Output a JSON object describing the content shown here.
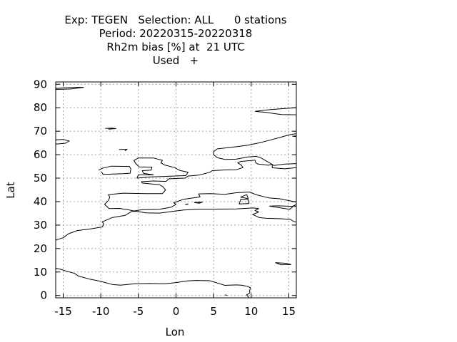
{
  "chart_data": {
    "type": "scatter",
    "title_lines": [
      "Exp: TEGEN   Selection: ALL      0 stations",
      "Period: 20220315-20220318",
      "Rh2m bias [%] at  21 UTC",
      "Used   +"
    ],
    "xlabel": "Lon",
    "ylabel": "Lat",
    "xlim": [
      -16,
      16
    ],
    "ylim": [
      -1,
      91
    ],
    "xticks": [
      -15,
      -10,
      -5,
      0,
      5,
      10,
      15
    ],
    "yticks": [
      0,
      10,
      20,
      30,
      40,
      50,
      60,
      70,
      80,
      90
    ],
    "grid": true,
    "series": [
      {
        "values": []
      }
    ],
    "coastlines": [
      [
        [
          -16,
          88.2
        ],
        [
          -15,
          88.5
        ],
        [
          -13.2,
          88.7
        ],
        [
          -12.3,
          88.7
        ],
        [
          -14,
          88.0
        ],
        [
          -16,
          87.8
        ]
      ],
      [
        [
          -16,
          66.3
        ],
        [
          -15,
          66.5
        ],
        [
          -14.2,
          65.8
        ],
        [
          -14.7,
          64.9
        ],
        [
          -16,
          64.5
        ]
      ],
      [
        [
          -9.4,
          71.2
        ],
        [
          -8.5,
          71.3
        ],
        [
          -8.0,
          71.1
        ],
        [
          -9.0,
          70.9
        ]
      ],
      [
        [
          -7.6,
          62.2
        ],
        [
          -6.5,
          62.3
        ],
        [
          -6.8,
          61.6
        ]
      ],
      [
        [
          -10.3,
          53.4
        ],
        [
          -9.8,
          54.2
        ],
        [
          -8.6,
          55.1
        ],
        [
          -6.2,
          55.0
        ],
        [
          -6.0,
          54.0
        ],
        [
          -6.1,
          52.1
        ],
        [
          -7.0,
          51.9
        ],
        [
          -9.7,
          51.6
        ],
        [
          -9.9,
          52.7
        ]
      ],
      [
        [
          -5.2,
          50.0
        ],
        [
          -3.5,
          50.5
        ],
        [
          -1.0,
          50.8
        ],
        [
          1.3,
          51.1
        ],
        [
          1.6,
          52.5
        ],
        [
          0.5,
          53.3
        ],
        [
          -0.2,
          54.5
        ],
        [
          -1.5,
          55.6
        ],
        [
          -2.0,
          56.5
        ],
        [
          -1.8,
          57.6
        ],
        [
          -3.0,
          58.6
        ],
        [
          -4.0,
          58.6
        ],
        [
          -5.0,
          58.6
        ],
        [
          -5.6,
          57.5
        ],
        [
          -5.3,
          56.0
        ],
        [
          -4.9,
          54.8
        ],
        [
          -3.2,
          54.7
        ],
        [
          -3.3,
          53.4
        ],
        [
          -4.5,
          53.2
        ],
        [
          -4.3,
          52.0
        ],
        [
          -3.0,
          51.4
        ],
        [
          -5.0,
          51.4
        ],
        [
          -5.2,
          50.0
        ]
      ],
      [
        [
          -4.6,
          48.5
        ],
        [
          -3.0,
          48.8
        ],
        [
          -1.3,
          48.6
        ],
        [
          -1.0,
          49.7
        ],
        [
          1.2,
          50.0
        ],
        [
          1.6,
          50.9
        ],
        [
          3.0,
          51.3
        ],
        [
          4.5,
          52.5
        ],
        [
          4.8,
          53.2
        ],
        [
          6.5,
          53.5
        ],
        [
          8.0,
          53.6
        ],
        [
          8.9,
          54.5
        ],
        [
          8.7,
          55.5
        ],
        [
          8.2,
          56.5
        ],
        [
          8.6,
          57.1
        ],
        [
          10.5,
          57.7
        ],
        [
          10.6,
          56.6
        ],
        [
          10.9,
          56.0
        ],
        [
          12.3,
          55.5
        ],
        [
          12.8,
          55.9
        ],
        [
          12.8,
          54.4
        ],
        [
          14.5,
          54.0
        ],
        [
          16,
          54.5
        ]
      ],
      [
        [
          16,
          56.2
        ],
        [
          15.5,
          56.1
        ],
        [
          14.5,
          56.0
        ],
        [
          13.0,
          55.4
        ],
        [
          12.6,
          56.2
        ],
        [
          11.9,
          57.5
        ],
        [
          11.2,
          58.8
        ],
        [
          10.6,
          59.3
        ],
        [
          9.5,
          59.0
        ],
        [
          8.0,
          58.1
        ],
        [
          6.5,
          58.0
        ],
        [
          5.5,
          58.7
        ],
        [
          5.0,
          60.0
        ],
        [
          5.0,
          61.3
        ],
        [
          5.5,
          62.5
        ],
        [
          7.5,
          63.2
        ],
        [
          9.5,
          64.0
        ],
        [
          11.0,
          65.0
        ],
        [
          12.5,
          66.2
        ],
        [
          14.0,
          67.5
        ],
        [
          15.0,
          68.4
        ],
        [
          16,
          69.0
        ]
      ],
      [
        [
          16,
          68.0
        ],
        [
          15.5,
          67.9
        ],
        [
          16,
          67.7
        ]
      ],
      [
        [
          10.5,
          78.5
        ],
        [
          12.5,
          79.2
        ],
        [
          14.5,
          79.7
        ],
        [
          16,
          80.0
        ],
        [
          16,
          77.0
        ],
        [
          14.0,
          77.1
        ],
        [
          12.0,
          78.0
        ],
        [
          10.5,
          78.5
        ]
      ],
      [
        [
          -9.0,
          43.0
        ],
        [
          -8.8,
          41.9
        ],
        [
          -9.0,
          40.5
        ],
        [
          -9.5,
          38.8
        ],
        [
          -8.9,
          37.0
        ],
        [
          -7.5,
          37.1
        ],
        [
          -6.3,
          36.5
        ],
        [
          -5.6,
          36.0
        ],
        [
          -4.5,
          36.6
        ],
        [
          -2.2,
          36.7
        ],
        [
          -0.7,
          37.6
        ],
        [
          0.0,
          38.8
        ],
        [
          -0.3,
          39.5
        ],
        [
          1.0,
          41.0
        ],
        [
          3.2,
          42.0
        ],
        [
          3.0,
          43.3
        ],
        [
          4.6,
          43.4
        ],
        [
          6.5,
          43.1
        ],
        [
          8.0,
          43.8
        ],
        [
          9.8,
          44.1
        ],
        [
          10.6,
          43.0
        ],
        [
          12.3,
          41.6
        ],
        [
          13.8,
          41.2
        ],
        [
          15.7,
          40.0
        ],
        [
          16,
          39.8
        ]
      ],
      [
        [
          16,
          38.7
        ],
        [
          15.6,
          38.2
        ],
        [
          16,
          38.0
        ]
      ],
      [
        [
          -9.0,
          43.0
        ],
        [
          -7.0,
          43.6
        ],
        [
          -4.0,
          43.4
        ],
        [
          -1.8,
          43.4
        ],
        [
          -1.4,
          45.0
        ],
        [
          -1.8,
          46.5
        ],
        [
          -2.2,
          47.2
        ],
        [
          -4.5,
          47.9
        ],
        [
          -4.6,
          48.5
        ]
      ],
      [
        [
          8.6,
          41.0
        ],
        [
          9.6,
          40.9
        ],
        [
          9.7,
          39.2
        ],
        [
          8.4,
          39.0
        ],
        [
          8.6,
          41.0
        ]
      ],
      [
        [
          9.4,
          43.0
        ],
        [
          9.6,
          41.3
        ],
        [
          8.6,
          41.9
        ],
        [
          9.4,
          43.0
        ]
      ],
      [
        [
          12.4,
          38.1
        ],
        [
          13.6,
          38.2
        ],
        [
          15.6,
          38.0
        ],
        [
          15.1,
          36.7
        ],
        [
          12.4,
          38.1
        ]
      ],
      [
        [
          1.2,
          38.8
        ],
        [
          1.6,
          39.0
        ],
        [
          1.4,
          38.7
        ]
      ],
      [
        [
          2.4,
          39.6
        ],
        [
          3.5,
          39.8
        ],
        [
          3.1,
          39.3
        ],
        [
          2.4,
          39.6
        ]
      ],
      [
        [
          -17,
          21.0
        ],
        [
          -16.5,
          22.5
        ],
        [
          -15.9,
          23.7
        ],
        [
          -15.0,
          24.6
        ],
        [
          -14.3,
          26.3
        ],
        [
          -13.2,
          27.6
        ],
        [
          -11.5,
          28.3
        ],
        [
          -9.8,
          29.2
        ],
        [
          -9.6,
          30.4
        ],
        [
          -9.8,
          31.4
        ],
        [
          -8.5,
          33.2
        ],
        [
          -6.8,
          34.1
        ],
        [
          -5.9,
          35.8
        ],
        [
          -5.3,
          35.9
        ],
        [
          -4.0,
          35.2
        ],
        [
          -2.2,
          35.1
        ],
        [
          -0.5,
          35.8
        ],
        [
          1.0,
          36.4
        ],
        [
          3.0,
          36.8
        ],
        [
          5.0,
          36.8
        ],
        [
          8.0,
          36.9
        ],
        [
          10.2,
          37.3
        ],
        [
          11.0,
          37.0
        ],
        [
          10.5,
          36.2
        ],
        [
          11.0,
          35.6
        ],
        [
          10.2,
          34.5
        ],
        [
          11.1,
          33.2
        ],
        [
          12.0,
          32.9
        ],
        [
          14.0,
          32.7
        ],
        [
          15.2,
          32.4
        ],
        [
          15.7,
          31.5
        ],
        [
          16,
          31.3
        ]
      ],
      [
        [
          -17,
          12.5
        ],
        [
          -16.8,
          13.5
        ],
        [
          -16.7,
          12.0
        ],
        [
          -15.5,
          11.3
        ],
        [
          -14.5,
          10.3
        ],
        [
          -13.5,
          9.4
        ],
        [
          -13.0,
          8.3
        ],
        [
          -11.5,
          7.0
        ],
        [
          -10.0,
          6.0
        ],
        [
          -8.5,
          4.7
        ],
        [
          -7.4,
          4.4
        ],
        [
          -5.5,
          5.0
        ],
        [
          -3.5,
          5.1
        ],
        [
          -1.5,
          5.0
        ],
        [
          0.0,
          5.5
        ],
        [
          1.5,
          6.2
        ],
        [
          2.7,
          6.4
        ],
        [
          4.5,
          6.3
        ],
        [
          5.8,
          5.0
        ],
        [
          6.5,
          4.3
        ],
        [
          7.0,
          4.4
        ],
        [
          8.0,
          4.5
        ],
        [
          8.7,
          4.4
        ],
        [
          9.5,
          3.9
        ],
        [
          9.9,
          3.3
        ],
        [
          9.8,
          2.3
        ],
        [
          9.8,
          1.0
        ],
        [
          9.4,
          0.3
        ],
        [
          9.7,
          -1.0
        ]
      ],
      [
        [
          6.5,
          0.3
        ],
        [
          6.8,
          0.0
        ]
      ],
      [
        [
          13.2,
          14.0
        ],
        [
          14.0,
          13.1
        ],
        [
          15.3,
          13.2
        ],
        [
          14.7,
          13.7
        ],
        [
          13.2,
          14.0
        ]
      ]
    ]
  }
}
